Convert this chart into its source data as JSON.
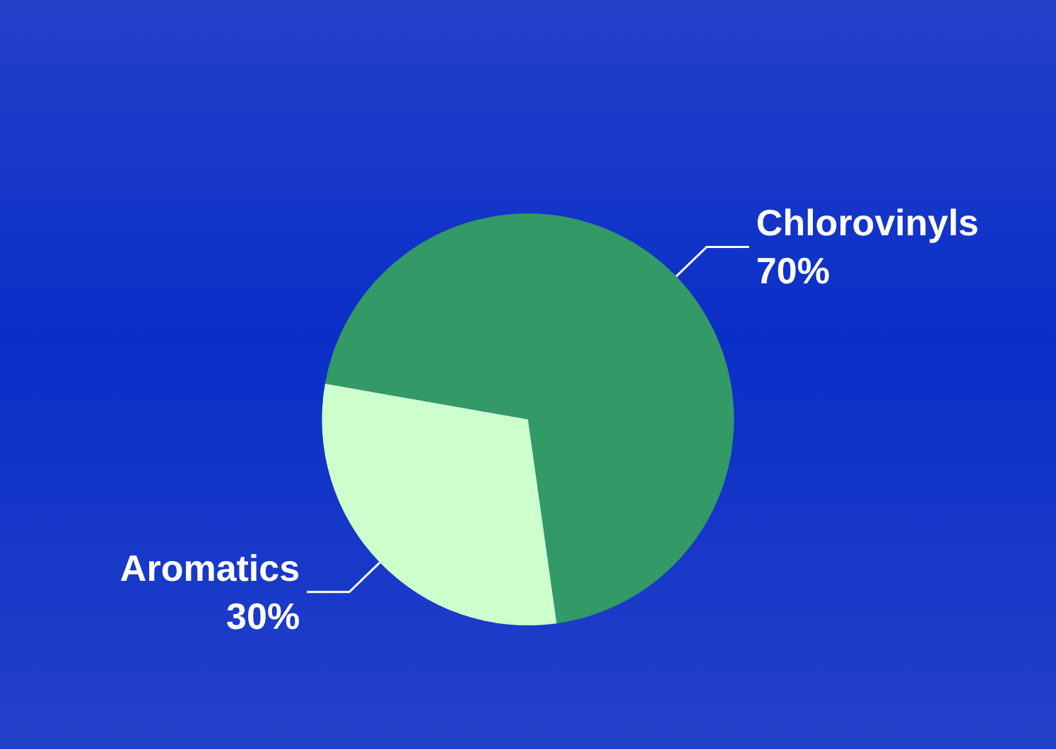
{
  "chart_data": {
    "type": "pie",
    "categories": [
      "Chlorovinyls",
      "Aromatics"
    ],
    "values": [
      70,
      30
    ],
    "value_labels": [
      "70%",
      "30%"
    ],
    "colors": [
      "#339966",
      "#ccffcc"
    ]
  }
}
